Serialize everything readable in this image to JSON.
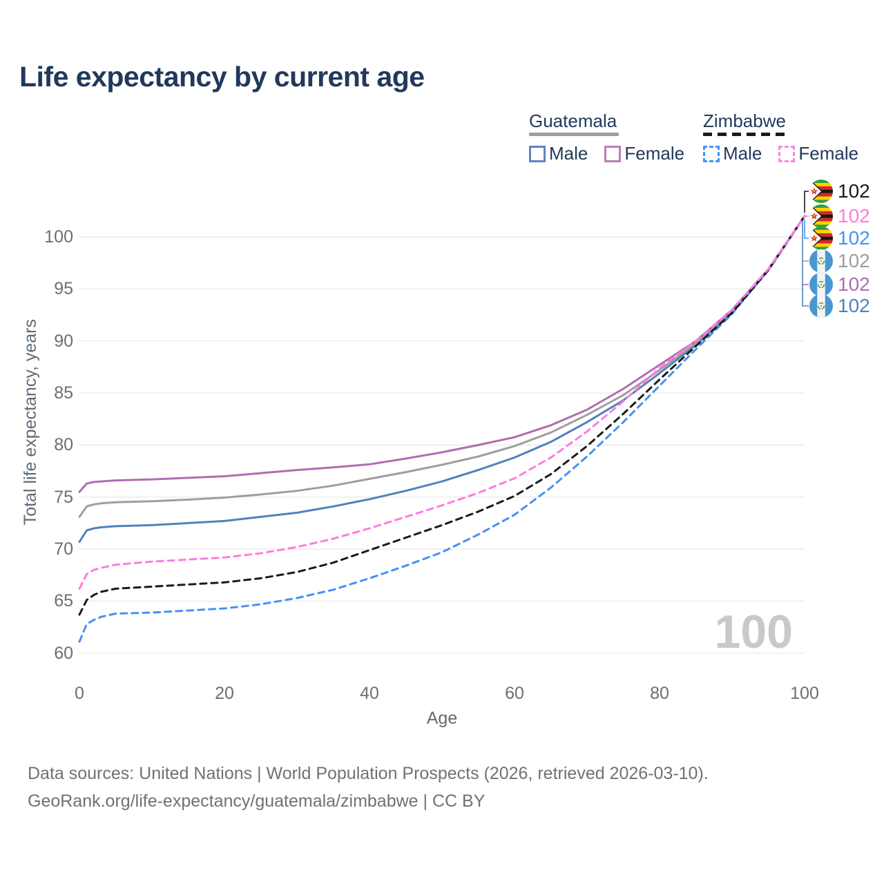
{
  "title": "Life expectancy by current age",
  "watermark_age": "100",
  "legend": {
    "guatemala": {
      "title": "Guatemala",
      "male": "Male",
      "female": "Female",
      "male_color": "#5B84C4",
      "female_color": "#BC7BB8",
      "line_color": "#9E9E9E",
      "line_style": "solid"
    },
    "zimbabwe": {
      "title": "Zimbabwe",
      "male": "Male",
      "female": "Female",
      "male_color": "#4A90F7",
      "female_color": "#FF85E3",
      "line_color": "#1A1A1A",
      "line_style": "dashed"
    }
  },
  "colors": {
    "title_text": "#20395C",
    "legend_text": "#22395B",
    "axis_text": "#6E6E6E",
    "grid": "#E8E8E8",
    "watermark": "#C9C9C9"
  },
  "chart_data": {
    "type": "line",
    "title": "Life expectancy by current age",
    "xlabel": "Age",
    "ylabel": "Total life expectancy, years",
    "x_ticks": [
      0,
      20,
      40,
      60,
      80,
      100
    ],
    "y_ticks": [
      60,
      65,
      70,
      75,
      80,
      85,
      90,
      95,
      100
    ],
    "xlim": [
      0,
      100
    ],
    "ylim": [
      58,
      104
    ],
    "grid": "horizontal",
    "legend_position": "top-right",
    "x": [
      0,
      1,
      2,
      3,
      5,
      10,
      15,
      20,
      25,
      30,
      35,
      40,
      45,
      50,
      55,
      60,
      65,
      70,
      75,
      80,
      85,
      90,
      95,
      100
    ],
    "series": [
      {
        "name": "Guatemala Male",
        "country": "Guatemala",
        "sex": "male",
        "style": "solid",
        "color": "#5081BE",
        "values": [
          70.7,
          71.8,
          72.0,
          72.1,
          72.2,
          72.3,
          72.5,
          72.7,
          73.1,
          73.5,
          74.1,
          74.8,
          75.6,
          76.5,
          77.6,
          78.8,
          80.3,
          82.2,
          84.3,
          86.9,
          89.6,
          92.8,
          96.8,
          102
        ]
      },
      {
        "name": "Guatemala",
        "country": "Guatemala",
        "sex": "both",
        "style": "solid",
        "color": "#9E9E9E",
        "values": [
          73.1,
          74.1,
          74.3,
          74.4,
          74.5,
          74.6,
          74.75,
          74.95,
          75.25,
          75.6,
          76.1,
          76.75,
          77.4,
          78.1,
          78.9,
          79.9,
          81.2,
          82.9,
          84.8,
          87.2,
          89.8,
          92.9,
          96.8,
          102
        ]
      },
      {
        "name": "Guatemala Female",
        "country": "Guatemala",
        "sex": "female",
        "style": "solid",
        "color": "#B06DAE",
        "values": [
          75.5,
          76.3,
          76.45,
          76.5,
          76.6,
          76.7,
          76.85,
          77.0,
          77.3,
          77.6,
          77.85,
          78.15,
          78.7,
          79.3,
          80.0,
          80.75,
          81.9,
          83.4,
          85.4,
          87.7,
          90.0,
          93.0,
          96.9,
          102
        ]
      },
      {
        "name": "Zimbabwe Male",
        "country": "Zimbabwe",
        "sex": "male",
        "style": "dashed",
        "color": "#4790F5",
        "values": [
          61.1,
          62.8,
          63.2,
          63.5,
          63.8,
          63.9,
          64.1,
          64.3,
          64.7,
          65.3,
          66.1,
          67.2,
          68.4,
          69.7,
          71.4,
          73.3,
          75.9,
          78.9,
          82.2,
          85.7,
          89.2,
          92.6,
          96.8,
          102
        ]
      },
      {
        "name": "Zimbabwe",
        "country": "Zimbabwe",
        "sex": "both",
        "style": "dashed",
        "color": "#1A1A1A",
        "values": [
          63.7,
          65.1,
          65.6,
          65.9,
          66.2,
          66.4,
          66.6,
          66.8,
          67.2,
          67.8,
          68.7,
          69.9,
          71.1,
          72.3,
          73.6,
          75.1,
          77.2,
          79.9,
          83.0,
          86.3,
          89.5,
          92.7,
          96.8,
          102
        ]
      },
      {
        "name": "Zimbabwe Female",
        "country": "Zimbabwe",
        "sex": "female",
        "style": "dashed",
        "color": "#FF7BE0",
        "values": [
          66.2,
          67.6,
          68.0,
          68.2,
          68.5,
          68.8,
          69.0,
          69.2,
          69.6,
          70.2,
          71.0,
          72.0,
          73.1,
          74.2,
          75.4,
          76.8,
          78.8,
          81.3,
          84.2,
          87.4,
          90.0,
          93.0,
          96.9,
          102
        ]
      }
    ]
  },
  "end_labels": [
    {
      "flag": "zimbabwe",
      "series": "Zimbabwe",
      "value": "102",
      "color": "#1A1A1A"
    },
    {
      "flag": "zimbabwe",
      "series": "Zimbabwe Female",
      "value": "102",
      "color": "#FF7BE0"
    },
    {
      "flag": "zimbabwe",
      "series": "Zimbabwe Male",
      "value": "102",
      "color": "#4790F5"
    },
    {
      "flag": "guatemala",
      "series": "Guatemala",
      "value": "102",
      "color": "#9E9E9E"
    },
    {
      "flag": "guatemala",
      "series": "Guatemala Female",
      "value": "102",
      "color": "#B06DAE"
    },
    {
      "flag": "guatemala",
      "series": "Guatemala Male",
      "value": "102",
      "color": "#5081BE"
    }
  ],
  "footer": {
    "line1": "Data sources: United Nations | World Population Prospects (2026, retrieved 2026-03-10).",
    "line2": "GeoRank.org/life-expectancy/guatemala/zimbabwe | CC BY"
  }
}
